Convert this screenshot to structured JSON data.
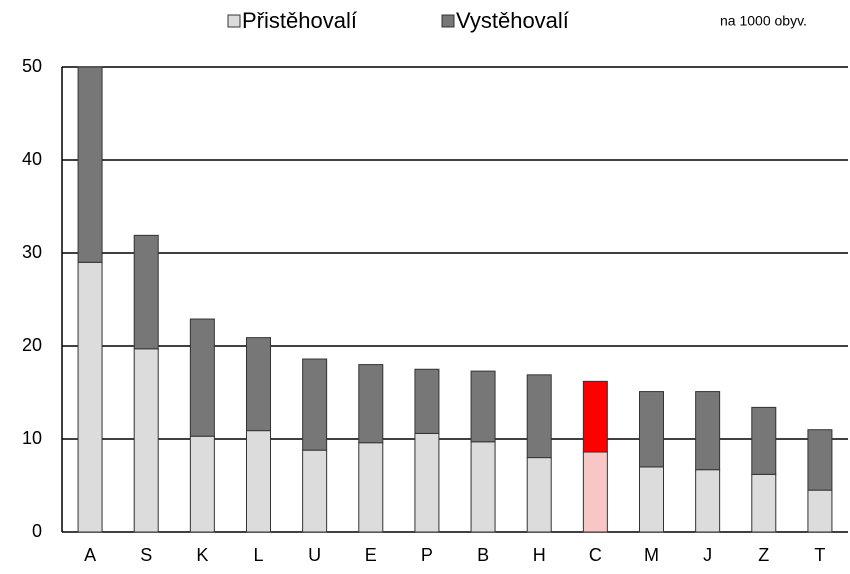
{
  "chart_data": {
    "type": "stacked_bar",
    "categories": [
      "A",
      "S",
      "K",
      "L",
      "U",
      "E",
      "P",
      "B",
      "H",
      "C",
      "M",
      "J",
      "Z",
      "T"
    ],
    "series": [
      {
        "name": "Přistěhovalí",
        "color": "#dcdcdc",
        "colors": [
          "#dcdcdc",
          "#dcdcdc",
          "#dcdcdc",
          "#dcdcdc",
          "#dcdcdc",
          "#dcdcdc",
          "#dcdcdc",
          "#dcdcdc",
          "#dcdcdc",
          "#f9c6c6",
          "#dcdcdc",
          "#dcdcdc",
          "#dcdcdc",
          "#dcdcdc"
        ],
        "values": [
          29,
          19.7,
          10.3,
          10.9,
          8.8,
          9.6,
          10.6,
          9.7,
          8,
          8.6,
          7,
          6.7,
          6.2,
          4.5
        ]
      },
      {
        "name": "Vystěhovalí",
        "color": "#777777",
        "colors": [
          "#777777",
          "#777777",
          "#777777",
          "#777777",
          "#777777",
          "#777777",
          "#777777",
          "#777777",
          "#777777",
          "#ff0000",
          "#777777",
          "#777777",
          "#777777",
          "#777777"
        ],
        "values": [
          21,
          12.2,
          12.6,
          10,
          9.8,
          8.4,
          6.9,
          7.6,
          8.9,
          7.6,
          8.1,
          8.4,
          7.2,
          6.5
        ]
      }
    ],
    "annotation": "na 1000 obyv.",
    "ylim": [
      0,
      50
    ],
    "yticks": [
      0,
      10,
      20,
      30,
      40,
      50
    ],
    "grid": true,
    "legend": "top"
  }
}
